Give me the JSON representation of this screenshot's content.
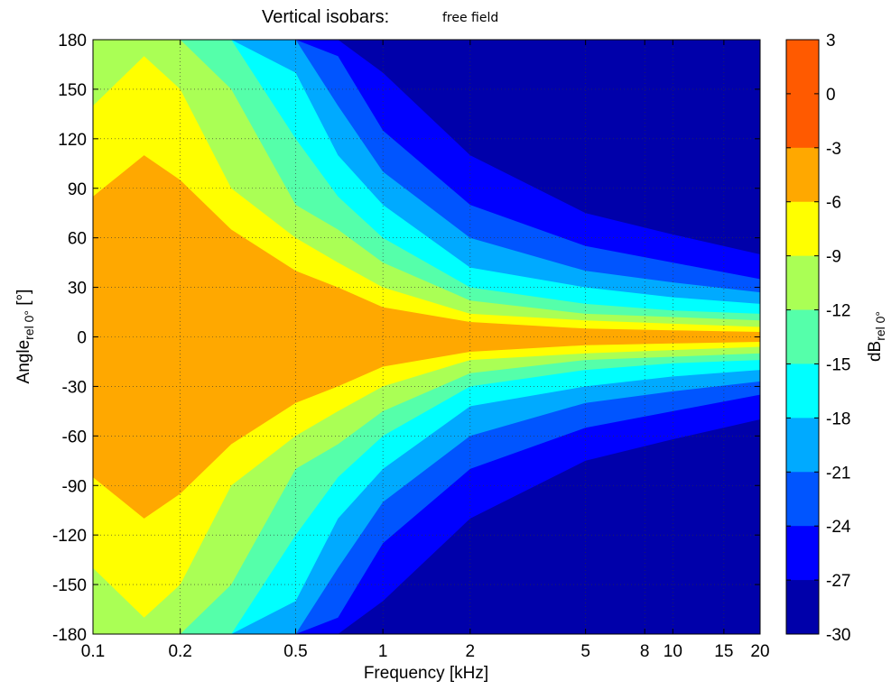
{
  "title": "Vertical isobars:",
  "subtitle": "free field",
  "chart_data": {
    "type": "heatmap",
    "xlabel": "Frequency [kHz]",
    "xscale": "log",
    "xlim": [
      0.1,
      20
    ],
    "xticks": [
      0.1,
      0.2,
      0.5,
      1,
      2,
      5,
      8,
      10,
      15,
      20
    ],
    "xtick_labels": [
      "0.1",
      "0.2",
      "0.5",
      "1",
      "2",
      "5",
      "8",
      "10",
      "15",
      "20"
    ],
    "ylabel_main": "Angle",
    "ylabel_sub": "rel 0°",
    "ylabel_unit": " [°]",
    "ylim": [
      -180,
      180
    ],
    "yticks": [
      180,
      150,
      120,
      90,
      60,
      30,
      0,
      -30,
      -60,
      -90,
      -120,
      -150,
      -180
    ],
    "grid": true,
    "colorbar": {
      "label_main": "dB",
      "label_sub": "rel 0°",
      "ticks": [
        3,
        0,
        -3,
        -6,
        -9,
        -12,
        -15,
        -18,
        -21,
        -24,
        -27,
        -30
      ],
      "levels": [
        {
          "from": 0,
          "to": 3,
          "color": "#ff5a00"
        },
        {
          "from": -3,
          "to": 0,
          "color": "#ff5a00"
        },
        {
          "from": -6,
          "to": -3,
          "color": "#ffa800"
        },
        {
          "from": -9,
          "to": -6,
          "color": "#ffff00"
        },
        {
          "from": -12,
          "to": -9,
          "color": "#aaff55"
        },
        {
          "from": -15,
          "to": -12,
          "color": "#55ffaa"
        },
        {
          "from": -18,
          "to": -15,
          "color": "#00ffff"
        },
        {
          "from": -21,
          "to": -18,
          "color": "#00aaff"
        },
        {
          "from": -24,
          "to": -21,
          "color": "#0055ff"
        },
        {
          "from": -27,
          "to": -24,
          "color": "#0000ff"
        },
        {
          "from": -30,
          "to": -27,
          "color": "#0000aa"
        }
      ]
    },
    "beamwidth_contours": [
      {
        "level": -3,
        "freq_khz": [
          0.1,
          0.15,
          0.2,
          0.3,
          0.5,
          0.7,
          1,
          2,
          5,
          10,
          20
        ],
        "half_angle_deg": [
          85,
          110,
          95,
          65,
          40,
          30,
          18,
          9,
          5,
          4,
          3
        ]
      },
      {
        "level": -6,
        "freq_khz": [
          0.1,
          0.15,
          0.2,
          0.3,
          0.5,
          0.7,
          1,
          2,
          5,
          10,
          20
        ],
        "half_angle_deg": [
          140,
          170,
          150,
          90,
          60,
          45,
          30,
          14,
          10,
          8,
          6
        ]
      },
      {
        "level": -9,
        "freq_khz": [
          0.1,
          0.15,
          0.2,
          0.3,
          0.5,
          0.7,
          1,
          2,
          5,
          10,
          20
        ],
        "half_angle_deg": [
          180,
          180,
          180,
          150,
          80,
          65,
          45,
          22,
          14,
          12,
          10
        ]
      },
      {
        "level": -12,
        "freq_khz": [
          0.1,
          0.15,
          0.2,
          0.3,
          0.5,
          0.7,
          1,
          2,
          5,
          10,
          20
        ],
        "half_angle_deg": [
          180,
          180,
          180,
          180,
          120,
          85,
          60,
          30,
          20,
          16,
          14
        ]
      },
      {
        "level": -15,
        "freq_khz": [
          0.1,
          0.15,
          0.2,
          0.3,
          0.5,
          0.7,
          1,
          2,
          5,
          10,
          20
        ],
        "half_angle_deg": [
          180,
          180,
          180,
          180,
          160,
          110,
          80,
          42,
          30,
          24,
          20
        ]
      },
      {
        "level": -18,
        "freq_khz": [
          0.1,
          0.15,
          0.2,
          0.3,
          0.5,
          0.7,
          1,
          2,
          5,
          10,
          20
        ],
        "half_angle_deg": [
          180,
          180,
          180,
          180,
          180,
          140,
          100,
          60,
          40,
          33,
          27
        ]
      },
      {
        "level": -21,
        "freq_khz": [
          0.1,
          0.15,
          0.2,
          0.3,
          0.5,
          0.7,
          1,
          2,
          5,
          10,
          20
        ],
        "half_angle_deg": [
          180,
          180,
          180,
          180,
          180,
          170,
          125,
          80,
          55,
          45,
          35
        ]
      },
      {
        "level": -24,
        "freq_khz": [
          0.1,
          0.15,
          0.2,
          0.3,
          0.5,
          0.7,
          1,
          2,
          5,
          10,
          20
        ],
        "half_angle_deg": [
          180,
          180,
          180,
          180,
          180,
          180,
          160,
          110,
          75,
          62,
          50
        ]
      },
      {
        "level": -27,
        "freq_khz": [
          0.1,
          0.15,
          0.2,
          0.3,
          0.5,
          0.7,
          1,
          2,
          5,
          10,
          20
        ],
        "half_angle_deg": [
          180,
          180,
          180,
          180,
          180,
          180,
          180,
          140,
          110,
          95,
          80
        ]
      }
    ]
  }
}
